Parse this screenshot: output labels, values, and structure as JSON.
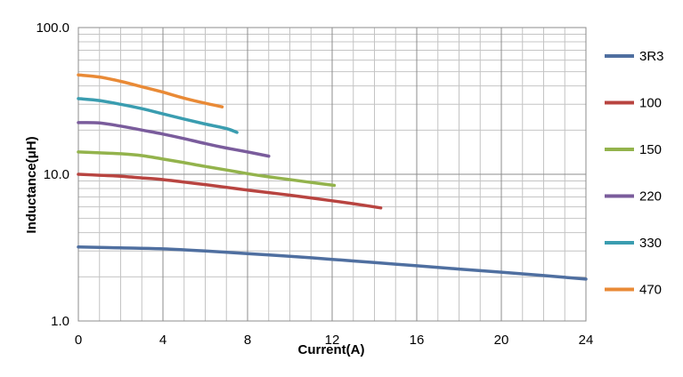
{
  "chart_data": {
    "type": "line",
    "title": "",
    "xlabel": "Current(A)",
    "ylabel": "Inductance(μH)",
    "xlim": [
      0,
      24
    ],
    "ylim": [
      1.0,
      100.0
    ],
    "yscale": "log",
    "grid": true,
    "legend_position": "right",
    "x_ticks": [
      "0",
      "4",
      "8",
      "12",
      "16",
      "20",
      "24"
    ],
    "y_ticks": [
      "1.0",
      "10.0",
      "100.0"
    ],
    "series": [
      {
        "name": "3R3",
        "color": "#4f6fa0",
        "x": [
          0,
          2,
          4,
          6,
          8,
          10,
          12,
          14,
          16,
          18,
          20,
          22,
          24
        ],
        "y": [
          3.2,
          3.15,
          3.1,
          3.0,
          2.88,
          2.76,
          2.63,
          2.5,
          2.38,
          2.26,
          2.15,
          2.04,
          1.93
        ]
      },
      {
        "name": "100",
        "color": "#b84440",
        "x": [
          0,
          1,
          2,
          3,
          4,
          5,
          6,
          7,
          8,
          9,
          10,
          11,
          12,
          13,
          14.3
        ],
        "y": [
          10.0,
          9.85,
          9.7,
          9.45,
          9.2,
          8.85,
          8.5,
          8.15,
          7.8,
          7.5,
          7.2,
          6.9,
          6.6,
          6.3,
          5.9
        ]
      },
      {
        "name": "150",
        "color": "#93b34c",
        "x": [
          0,
          1,
          2,
          3,
          4,
          5,
          6,
          7,
          8,
          9,
          10,
          11,
          12.1
        ],
        "y": [
          14.2,
          14.0,
          13.8,
          13.4,
          12.7,
          12.0,
          11.3,
          10.7,
          10.1,
          9.6,
          9.2,
          8.8,
          8.4
        ]
      },
      {
        "name": "220",
        "color": "#7a5c9c",
        "x": [
          0,
          1,
          2,
          3,
          4,
          5,
          6,
          7,
          8,
          9
        ],
        "y": [
          22.5,
          22.4,
          21.3,
          20.0,
          18.8,
          17.5,
          16.2,
          15.1,
          14.2,
          13.3
        ]
      },
      {
        "name": "330",
        "color": "#3a9db0",
        "x": [
          0,
          1,
          2,
          3,
          4,
          5,
          6,
          7,
          7.5
        ],
        "y": [
          32.8,
          31.8,
          30.0,
          28.0,
          25.8,
          23.8,
          22.0,
          20.5,
          19.3
        ]
      },
      {
        "name": "470",
        "color": "#e98a36",
        "x": [
          0,
          1,
          2,
          3,
          4,
          5,
          6,
          6.8
        ],
        "y": [
          47.5,
          46.0,
          43.0,
          39.5,
          36.3,
          33.0,
          30.5,
          28.8
        ]
      }
    ]
  }
}
